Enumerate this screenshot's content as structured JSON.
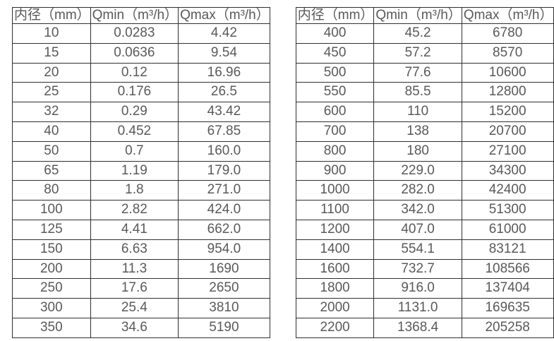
{
  "colors": {
    "background": "#ffffff",
    "border": "#2f2f2f",
    "text": "#595959"
  },
  "tables": [
    {
      "name": "flow-table-left",
      "columns": [
        "内径（mm）",
        "Qmin（m³/h）",
        "Qmax（m³/h）"
      ],
      "rows": [
        [
          "10",
          "0.0283",
          "4.42"
        ],
        [
          "15",
          "0.0636",
          "9.54"
        ],
        [
          "20",
          "0.12",
          "16.96"
        ],
        [
          "25",
          "0.176",
          "26.5"
        ],
        [
          "32",
          "0.29",
          "43.42"
        ],
        [
          "40",
          "0.452",
          "67.85"
        ],
        [
          "50",
          "0.7",
          "160.0"
        ],
        [
          "65",
          "1.19",
          "179.0"
        ],
        [
          "80",
          "1.8",
          "271.0"
        ],
        [
          "100",
          "2.82",
          "424.0"
        ],
        [
          "125",
          "4.41",
          "662.0"
        ],
        [
          "150",
          "6.63",
          "954.0"
        ],
        [
          "200",
          "11.3",
          "1690"
        ],
        [
          "250",
          "17.6",
          "2650"
        ],
        [
          "300",
          "25.4",
          "3810"
        ],
        [
          "350",
          "34.6",
          "5190"
        ]
      ]
    },
    {
      "name": "flow-table-right",
      "columns": [
        "内径（mm）",
        "Qmin（m³/h）",
        "Qmax（m³/h）"
      ],
      "rows": [
        [
          "400",
          "45.2",
          "6780"
        ],
        [
          "450",
          "57.2",
          "8570"
        ],
        [
          "500",
          "77.6",
          "10600"
        ],
        [
          "550",
          "85.5",
          "12800"
        ],
        [
          "600",
          "110",
          "15200"
        ],
        [
          "700",
          "138",
          "20700"
        ],
        [
          "800",
          "180",
          "27100"
        ],
        [
          "900",
          "229.0",
          "34300"
        ],
        [
          "1000",
          "282.0",
          "42400"
        ],
        [
          "1100",
          "342.0",
          "51300"
        ],
        [
          "1200",
          "407.0",
          "61000"
        ],
        [
          "1400",
          "554.1",
          "83121"
        ],
        [
          "1600",
          "732.7",
          "108566"
        ],
        [
          "1800",
          "916.0",
          "137404"
        ],
        [
          "2000",
          "1131.0",
          "169635"
        ],
        [
          "2200",
          "1368.4",
          "205258"
        ]
      ]
    }
  ]
}
